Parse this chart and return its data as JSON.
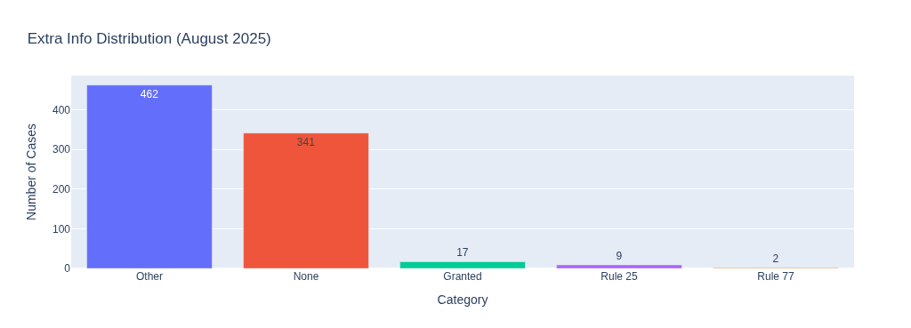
{
  "chart_data": {
    "type": "bar",
    "title": "Extra Info Distribution (August 2025)",
    "xlabel": "Category",
    "ylabel": "Number of Cases",
    "categories": [
      "Other",
      "None",
      "Granted",
      "Rule 25",
      "Rule 77"
    ],
    "values": [
      462,
      341,
      17,
      9,
      2
    ],
    "colors": [
      "#636efa",
      "#ef553b",
      "#00cc96",
      "#ab63fa",
      "#ffa15a"
    ],
    "ylim": [
      0,
      486
    ],
    "yticks": [
      0,
      100,
      200,
      300,
      400
    ],
    "grid": "y",
    "data_labels": true
  }
}
